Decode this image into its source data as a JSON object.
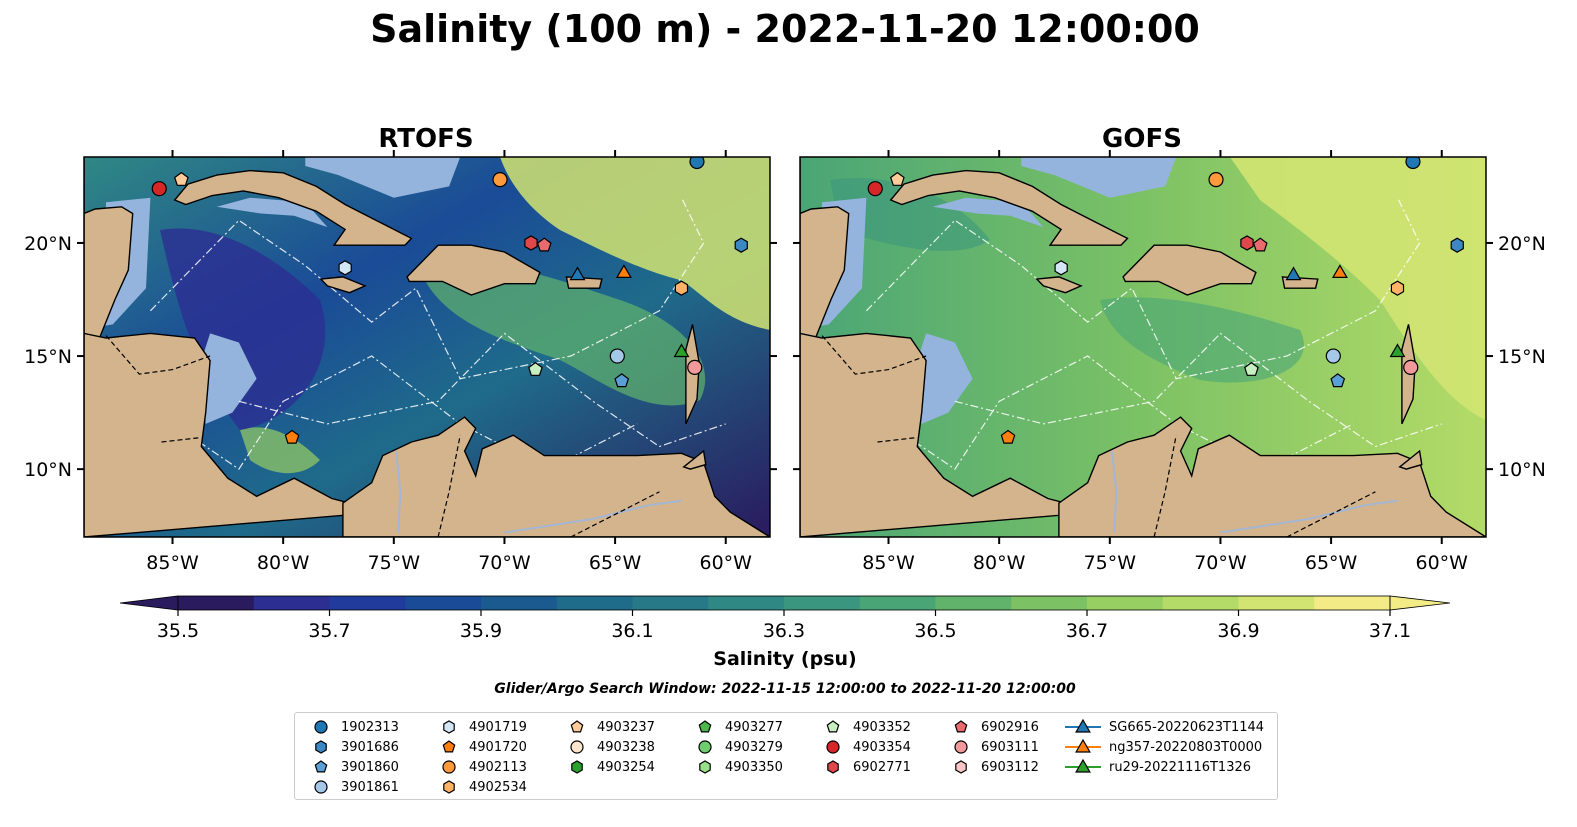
{
  "figure": {
    "title": "Salinity (100 m) - 2022-11-20 12:00:00",
    "colorbar_label": "Salinity (psu)",
    "search_window": "Glider/Argo Search Window: 2022-11-15 12:00:00 to 2022-11-20 12:00:00"
  },
  "panels": [
    {
      "title": "RTOFS"
    },
    {
      "title": "GOFS"
    }
  ],
  "axes": {
    "lon_range": [
      -89,
      -58
    ],
    "lat_range": [
      7,
      23.8
    ],
    "x_ticks": [
      "85°W",
      "80°W",
      "75°W",
      "70°W",
      "65°W",
      "60°W"
    ],
    "x_tick_values": [
      -85,
      -80,
      -75,
      -70,
      -65,
      -60
    ],
    "y_ticks": [
      "20°N",
      "15°N",
      "10°N"
    ],
    "y_tick_values": [
      20,
      15,
      10
    ]
  },
  "colorbar": {
    "min": 35.5,
    "max": 37.1,
    "tick_labels": [
      "35.5",
      "35.7",
      "35.9",
      "36.1",
      "36.3",
      "36.5",
      "36.7",
      "36.9",
      "37.1"
    ],
    "colors": [
      "#2a1a5e",
      "#2c2e92",
      "#203b9c",
      "#1a4b97",
      "#1a5a8f",
      "#1f6b8a",
      "#277987",
      "#2f8884",
      "#3a967e",
      "#4aa576",
      "#61b36c",
      "#7cc265",
      "#98cf62",
      "#b4db67",
      "#d2e472",
      "#f2eb86"
    ],
    "extend": "both"
  },
  "map_colors": {
    "land": "#d4b48c",
    "shelf": "#94b4de",
    "coast": "#000000",
    "rivers": "#a3b6d3"
  },
  "legend": {
    "items": [
      {
        "label": "1902313",
        "marker": "circle",
        "color": "#1f77b4"
      },
      {
        "label": "3901686",
        "marker": "hexagon",
        "color": "#3b88c4"
      },
      {
        "label": "3901860",
        "marker": "pentagon",
        "color": "#5a9fd6"
      },
      {
        "label": "3901861",
        "marker": "circle",
        "color": "#a6c8e8"
      },
      {
        "label": "4901719",
        "marker": "hexagon",
        "color": "#d2e6f5"
      },
      {
        "label": "4901720",
        "marker": "pentagon",
        "color": "#ff7f0e"
      },
      {
        "label": "4902113",
        "marker": "circle",
        "color": "#ff9a3c"
      },
      {
        "label": "4902534",
        "marker": "hexagon",
        "color": "#ffb366"
      },
      {
        "label": "4903237",
        "marker": "pentagon",
        "color": "#ffcc99"
      },
      {
        "label": "4903238",
        "marker": "circle",
        "color": "#ffe5cc"
      },
      {
        "label": "4903254",
        "marker": "hexagon",
        "color": "#2ca02c"
      },
      {
        "label": "4903277",
        "marker": "pentagon",
        "color": "#4cb84c"
      },
      {
        "label": "4903279",
        "marker": "circle",
        "color": "#6fcc6f"
      },
      {
        "label": "4903350",
        "marker": "hexagon",
        "color": "#98df8a"
      },
      {
        "label": "4903352",
        "marker": "pentagon",
        "color": "#c7efc0"
      },
      {
        "label": "4903354",
        "marker": "circle",
        "color": "#d62728"
      },
      {
        "label": "6902771",
        "marker": "hexagon",
        "color": "#e0474a"
      },
      {
        "label": "6902916",
        "marker": "pentagon",
        "color": "#ea6b6e"
      },
      {
        "label": "6903111",
        "marker": "circle",
        "color": "#f29a9b"
      },
      {
        "label": "6903112",
        "marker": "hexagon",
        "color": "#f9c6c7"
      },
      {
        "label": "SG665-20220623T1144",
        "marker": "triangle-line",
        "color": "#1f77b4"
      },
      {
        "label": "ng357-20220803T0000",
        "marker": "triangle-line",
        "color": "#ff7f0e"
      },
      {
        "label": "ru29-20221116T1326",
        "marker": "triangle-line",
        "color": "#2ca02c"
      }
    ]
  },
  "markers": [
    {
      "id": "1902313",
      "lon": -61.3,
      "lat": 23.6,
      "marker": "circle",
      "color": "#1f77b4"
    },
    {
      "id": "3901686",
      "lon": -59.3,
      "lat": 19.9,
      "marker": "hexagon",
      "color": "#3b88c4"
    },
    {
      "id": "3901860",
      "lon": -64.7,
      "lat": 13.9,
      "marker": "pentagon",
      "color": "#5a9fd6"
    },
    {
      "id": "3901861",
      "lon": -64.9,
      "lat": 15.0,
      "marker": "circle",
      "color": "#a6c8e8"
    },
    {
      "id": "4901719",
      "lon": -77.2,
      "lat": 18.9,
      "marker": "hexagon",
      "color": "#d2e6f5"
    },
    {
      "id": "4901720",
      "lon": -79.6,
      "lat": 11.4,
      "marker": "pentagon",
      "color": "#ff7f0e"
    },
    {
      "id": "4902113",
      "lon": -70.2,
      "lat": 22.8,
      "marker": "circle",
      "color": "#ff9a3c"
    },
    {
      "id": "4902534",
      "lon": -62.0,
      "lat": 18.0,
      "marker": "hexagon",
      "color": "#ffb366"
    },
    {
      "id": "4903237",
      "lon": -84.6,
      "lat": 22.8,
      "marker": "pentagon",
      "color": "#ffcc99"
    },
    {
      "id": "4903352",
      "lon": -68.6,
      "lat": 14.4,
      "marker": "pentagon",
      "color": "#c7efc0"
    },
    {
      "id": "4903354",
      "lon": -85.6,
      "lat": 22.4,
      "marker": "circle",
      "color": "#d62728"
    },
    {
      "id": "6902771",
      "lon": -68.8,
      "lat": 20.0,
      "marker": "hexagon",
      "color": "#e0474a"
    },
    {
      "id": "6902916",
      "lon": -68.2,
      "lat": 19.9,
      "marker": "pentagon",
      "color": "#ea6b6e"
    },
    {
      "id": "6903111",
      "lon": -61.4,
      "lat": 14.5,
      "marker": "circle",
      "color": "#f29a9b"
    },
    {
      "id": "SG665-20220623T1144",
      "lon": -66.7,
      "lat": 18.6,
      "marker": "triangle",
      "color": "#1f77b4"
    },
    {
      "id": "ng357-20220803T0000",
      "lon": -64.6,
      "lat": 18.7,
      "marker": "triangle",
      "color": "#ff7f0e"
    },
    {
      "id": "ru29-20221116T1326",
      "lon": -62.0,
      "lat": 15.2,
      "marker": "triangle",
      "color": "#2ca02c"
    }
  ]
}
